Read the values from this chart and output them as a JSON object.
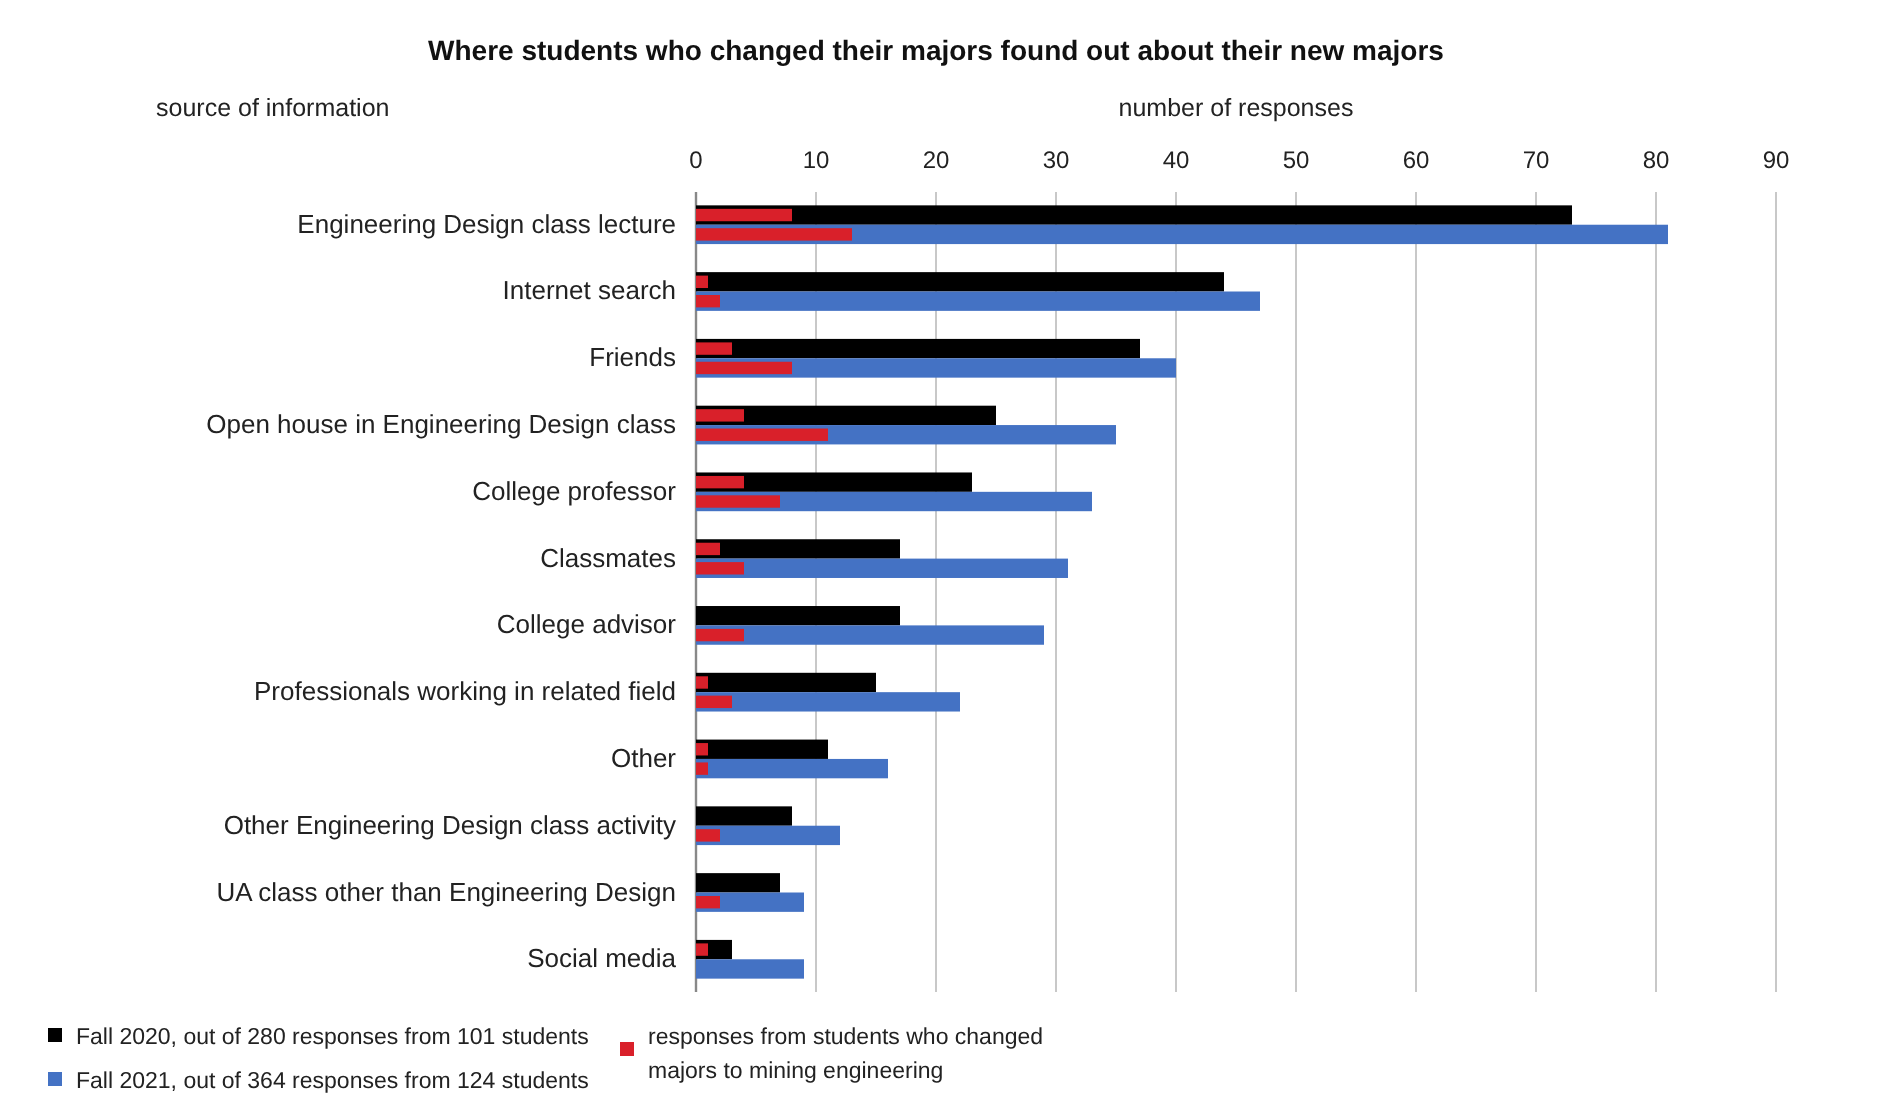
{
  "chart_data": {
    "type": "bar",
    "orientation": "horizontal",
    "title": "Where students who changed their majors found out about their new majors",
    "xlabel": "number of responses",
    "ylabel": "source of information",
    "categories": [
      "Engineering Design class lecture",
      "Internet search",
      "Friends",
      "Open house in Engineering Design class",
      "College professor",
      "Classmates",
      "College advisor",
      "Professionals working in related field",
      "Other",
      "Other Engineering Design class activity",
      "UA class other than Engineering Design",
      "Social media"
    ],
    "series": [
      {
        "name": "Fall 2020, out of 280 responses from 101 students",
        "color": "#000000",
        "values": [
          73,
          44,
          37,
          25,
          23,
          17,
          17,
          15,
          11,
          8,
          7,
          3
        ]
      },
      {
        "name": "Fall 2021, out of 364 responses from 124 students",
        "color": "#4472c4",
        "values": [
          81,
          47,
          40,
          35,
          33,
          31,
          29,
          22,
          16,
          12,
          9,
          9
        ]
      },
      {
        "name": "responses from students who changed majors to mining engineering",
        "color": "#d9202a",
        "values": [
          8,
          1,
          3,
          4,
          4,
          2,
          null,
          1,
          1,
          null,
          null,
          1
        ]
      },
      {
        "color": "#d9202a",
        "values": [
          13,
          2,
          8,
          11,
          7,
          4,
          4,
          3,
          1,
          2,
          2,
          null
        ]
      }
    ],
    "xlim": [
      0,
      90
    ],
    "xticks": [
      0,
      10,
      20,
      30,
      40,
      50,
      60,
      70,
      80,
      90
    ],
    "grid": "x",
    "legend": "bottom"
  }
}
